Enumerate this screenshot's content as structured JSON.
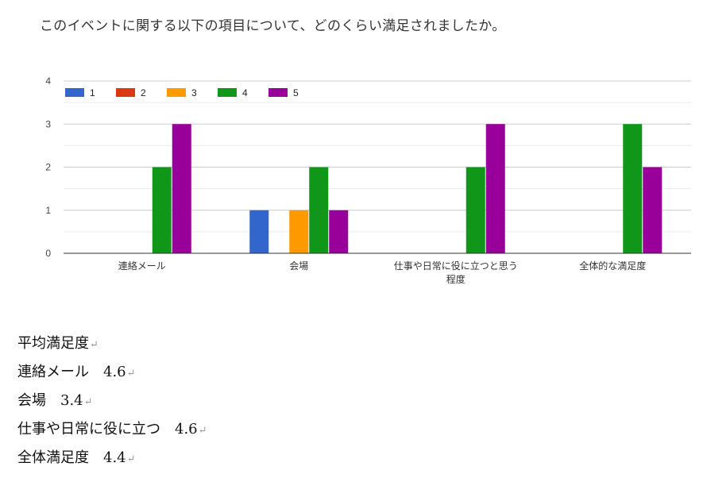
{
  "question": "このイベントに関する以下の項目について、どのくらい満足されましたか。",
  "chart_data": {
    "type": "bar",
    "title": "",
    "xlabel": "",
    "ylabel": "",
    "ylim": [
      0,
      4
    ],
    "yticks": [
      "0",
      "1",
      "2",
      "3",
      "4"
    ],
    "grid": true,
    "legend_position": "top-left",
    "categories": [
      [
        "連絡メール"
      ],
      [
        "会場"
      ],
      [
        "仕事や日常に役に立つと思う",
        "程度"
      ],
      [
        "全体的な満足度"
      ]
    ],
    "series": [
      {
        "name": "1",
        "color": "#3366cc",
        "values": [
          0,
          1,
          0,
          0
        ]
      },
      {
        "name": "2",
        "color": "#dc3912",
        "values": [
          0,
          0,
          0,
          0
        ]
      },
      {
        "name": "3",
        "color": "#ff9900",
        "values": [
          0,
          1,
          0,
          0
        ]
      },
      {
        "name": "4",
        "color": "#109618",
        "values": [
          2,
          2,
          2,
          3
        ]
      },
      {
        "name": "5",
        "color": "#990099",
        "values": [
          3,
          1,
          3,
          2
        ]
      }
    ]
  },
  "summary": {
    "heading": "平均満足度",
    "lines": [
      "連絡メール　4.6",
      "会場　3.4",
      "仕事や日常に役に立つ　4.6",
      "全体満足度　4.4"
    ],
    "return_mark": "↵"
  }
}
